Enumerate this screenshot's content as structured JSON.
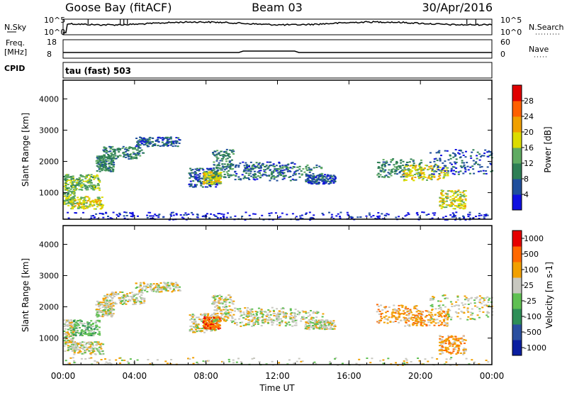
{
  "header": {
    "station": "Goose Bay (fitACF)",
    "beam": "Beam 03",
    "date": "30/Apr/2016"
  },
  "noise_panel": {
    "left_label": "N.Sky",
    "right_label": "N.Search",
    "left_ticks": [
      "10^5",
      "10^0"
    ],
    "right_ticks": [
      "10^5",
      "10^0"
    ]
  },
  "freq_panel": {
    "left_label": "Freq.",
    "left_unit": "[MHz]",
    "right_label": "Nave",
    "left_ticks": [
      "18",
      "8"
    ],
    "right_ticks": [
      "60",
      "0"
    ]
  },
  "cpid": {
    "label": "CPID",
    "value": "tau (fast) 503"
  },
  "x_axis": {
    "label": "Time UT",
    "ticks": [
      "00:00",
      "04:00",
      "08:00",
      "12:00",
      "16:00",
      "20:00",
      "00:00"
    ]
  },
  "chart_data": [
    {
      "type": "heatmap",
      "name": "power",
      "ylabel": "Slant Range [km]",
      "yticks": [
        1000,
        2000,
        3000,
        4000
      ],
      "ylim": [
        150,
        4600
      ],
      "xlim_hours": [
        0,
        24
      ],
      "colorbar": {
        "label": "Power [dB]",
        "ticks": [
          "4",
          "8",
          "12",
          "16",
          "20",
          "24",
          "28"
        ],
        "colors": [
          "#1010e0",
          "#204f9c",
          "#2e7f55",
          "#5fab62",
          "#dcdc00",
          "#f0a000",
          "#ff6000",
          "#e00000"
        ]
      },
      "regions": [
        {
          "t": [
            0.0,
            0.6
          ],
          "r": [
            600,
            1600
          ],
          "level": 3
        },
        {
          "t": [
            0.4,
            2.2
          ],
          "r": [
            500,
            900
          ],
          "level": 4
        },
        {
          "t": [
            0.5,
            2.0
          ],
          "r": [
            1100,
            1600
          ],
          "level": 3
        },
        {
          "t": [
            1.8,
            2.8
          ],
          "r": [
            1700,
            2200
          ],
          "level": 2
        },
        {
          "t": [
            2.2,
            4.5
          ],
          "r": [
            2100,
            2500
          ],
          "level": 2
        },
        {
          "t": [
            4.0,
            6.5
          ],
          "r": [
            2500,
            2800
          ],
          "level": 1
        },
        {
          "t": [
            7.0,
            8.6
          ],
          "r": [
            1200,
            1800
          ],
          "level": 1
        },
        {
          "t": [
            7.8,
            8.8
          ],
          "r": [
            1300,
            1700
          ],
          "level": 4
        },
        {
          "t": [
            8.3,
            9.5
          ],
          "r": [
            1500,
            2400
          ],
          "level": 2
        },
        {
          "t": [
            9.5,
            13.0
          ],
          "r": [
            1400,
            2000
          ],
          "level": 1
        },
        {
          "t": [
            10.0,
            14.5
          ],
          "r": [
            1500,
            1900
          ],
          "level": 2
        },
        {
          "t": [
            13.5,
            15.2
          ],
          "r": [
            1300,
            1600
          ],
          "level": 1
        },
        {
          "t": [
            17.5,
            20.0
          ],
          "r": [
            1500,
            2100
          ],
          "level": 2
        },
        {
          "t": [
            19.0,
            21.5
          ],
          "r": [
            1400,
            1900
          ],
          "level": 4
        },
        {
          "t": [
            20.5,
            24.0
          ],
          "r": [
            1600,
            2400
          ],
          "level": 1
        },
        {
          "t": [
            21.0,
            22.5
          ],
          "r": [
            500,
            1100
          ],
          "level": 4
        },
        {
          "t": [
            0.0,
            24.0
          ],
          "r": [
            150,
            400
          ],
          "level": 0
        }
      ]
    },
    {
      "type": "heatmap",
      "name": "velocity",
      "ylabel": "Slant Range [km]",
      "yticks": [
        1000,
        2000,
        3000,
        4000
      ],
      "ylim": [
        150,
        4600
      ],
      "xlim_hours": [
        0,
        24
      ],
      "colorbar": {
        "label": "Velocity [m s-1]",
        "ticks": [
          "1000",
          "500",
          "100",
          "25",
          "-25",
          "-100",
          "-500",
          "-1000"
        ],
        "colors": [
          "#0a1ea0",
          "#2a4f9f",
          "#2e8f57",
          "#5fc052",
          "#c8c8c0",
          "#f2a000",
          "#ff6800",
          "#e60000"
        ]
      },
      "regions": [
        {
          "t": [
            0.0,
            0.6
          ],
          "r": [
            600,
            1600
          ],
          "level": 4
        },
        {
          "t": [
            0.4,
            2.2
          ],
          "r": [
            500,
            900
          ],
          "level": 4
        },
        {
          "t": [
            0.5,
            2.0
          ],
          "r": [
            1100,
            1600
          ],
          "level": 3
        },
        {
          "t": [
            1.8,
            2.8
          ],
          "r": [
            1700,
            2200
          ],
          "level": 4
        },
        {
          "t": [
            2.2,
            4.5
          ],
          "r": [
            2100,
            2500
          ],
          "level": 4
        },
        {
          "t": [
            4.0,
            6.5
          ],
          "r": [
            2500,
            2800
          ],
          "level": 4
        },
        {
          "t": [
            7.0,
            8.6
          ],
          "r": [
            1200,
            1800
          ],
          "level": 4
        },
        {
          "t": [
            7.8,
            8.8
          ],
          "r": [
            1300,
            1700
          ],
          "level": 6
        },
        {
          "t": [
            8.3,
            9.5
          ],
          "r": [
            1500,
            2400
          ],
          "level": 4
        },
        {
          "t": [
            9.5,
            13.0
          ],
          "r": [
            1400,
            2000
          ],
          "level": 4
        },
        {
          "t": [
            10.0,
            14.5
          ],
          "r": [
            1500,
            1900
          ],
          "level": 4
        },
        {
          "t": [
            13.5,
            15.2
          ],
          "r": [
            1300,
            1600
          ],
          "level": 4
        },
        {
          "t": [
            17.5,
            20.0
          ],
          "r": [
            1500,
            2100
          ],
          "level": 5
        },
        {
          "t": [
            19.0,
            21.5
          ],
          "r": [
            1400,
            1900
          ],
          "level": 5
        },
        {
          "t": [
            20.5,
            24.0
          ],
          "r": [
            1600,
            2400
          ],
          "level": 4
        },
        {
          "t": [
            21.0,
            22.5
          ],
          "r": [
            500,
            1100
          ],
          "level": 5
        },
        {
          "t": [
            0.0,
            24.0
          ],
          "r": [
            150,
            400
          ],
          "level": 4
        }
      ]
    }
  ]
}
